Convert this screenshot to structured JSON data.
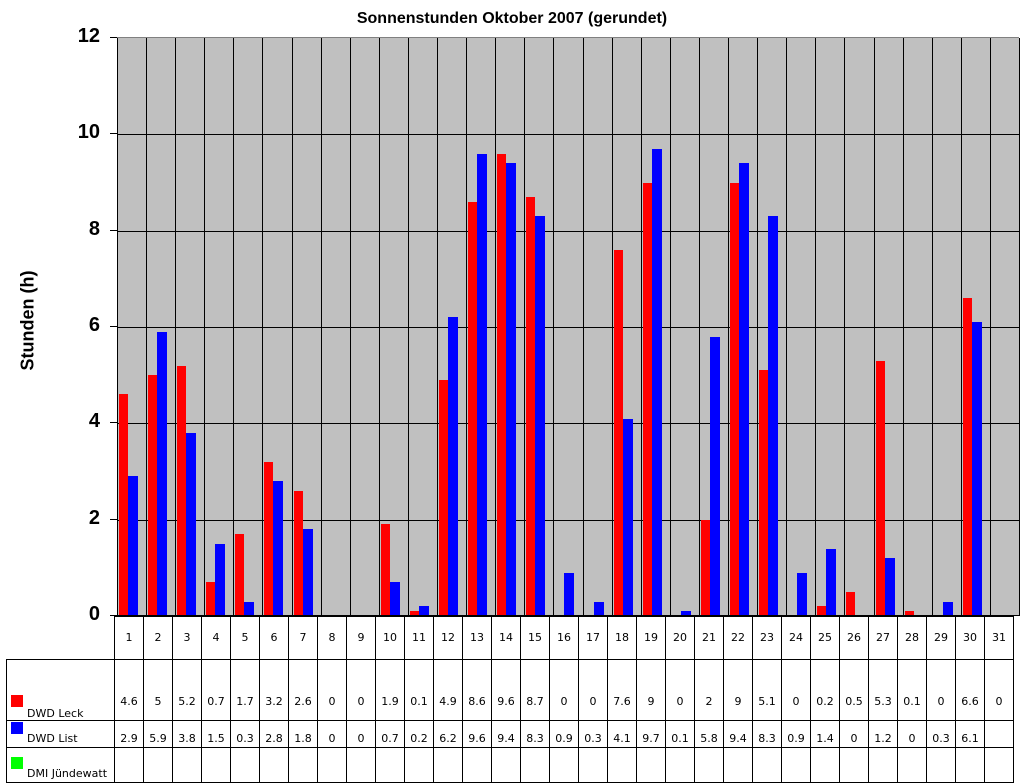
{
  "chart_data": {
    "type": "bar",
    "title": "Sonnenstunden Oktober 2007 (gerundet)",
    "xlabel": "",
    "ylabel": "Stunden (h)",
    "ylim": [
      0,
      12
    ],
    "yticks": [
      0,
      2,
      4,
      6,
      8,
      10,
      12
    ],
    "grid": true,
    "legend_position": "data-table",
    "categories": [
      "1",
      "2",
      "3",
      "4",
      "5",
      "6",
      "7",
      "8",
      "9",
      "10",
      "11",
      "12",
      "13",
      "14",
      "15",
      "16",
      "17",
      "18",
      "19",
      "20",
      "21",
      "22",
      "23",
      "24",
      "25",
      "26",
      "27",
      "28",
      "29",
      "30",
      "31"
    ],
    "series": [
      {
        "name": "DWD Leck",
        "color": "#ff0000",
        "values": [
          4.6,
          5,
          5.2,
          0.7,
          1.7,
          3.2,
          2.6,
          0,
          0,
          1.9,
          0.1,
          4.9,
          8.6,
          9.6,
          8.7,
          0,
          0,
          7.6,
          9,
          0,
          2,
          9,
          5.1,
          0,
          0.2,
          0.5,
          5.3,
          0.1,
          0,
          6.6,
          0
        ]
      },
      {
        "name": "DWD List",
        "color": "#0000ff",
        "values": [
          2.9,
          5.9,
          3.8,
          1.5,
          0.3,
          2.8,
          1.8,
          0,
          0,
          0.7,
          0.2,
          6.2,
          9.6,
          9.4,
          8.3,
          0.9,
          0.3,
          4.1,
          9.7,
          0.1,
          5.8,
          9.4,
          8.3,
          0.9,
          1.4,
          0,
          1.2,
          0,
          0.3,
          6.1,
          null
        ]
      },
      {
        "name": "DMI Jündewatt",
        "color": "#00ff00",
        "values": [
          null,
          null,
          null,
          null,
          null,
          null,
          null,
          null,
          null,
          null,
          null,
          null,
          null,
          null,
          null,
          null,
          null,
          null,
          null,
          null,
          null,
          null,
          null,
          null,
          null,
          null,
          null,
          null,
          null,
          null,
          null
        ]
      }
    ]
  },
  "colors": {
    "plot_background": "#c0c0c0"
  }
}
